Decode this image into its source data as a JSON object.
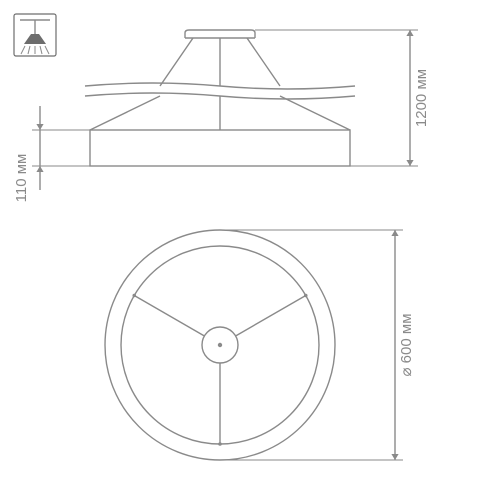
{
  "drawing": {
    "type": "engineering-diagram",
    "background_color": "#ffffff",
    "stroke_color": "#8a8a8a",
    "stroke_width": 1.4,
    "text_color": "#8a8a8a",
    "font_size_pt": 11,
    "dimensions_unit": "мм"
  },
  "dimensions": {
    "height_label": "1200 мм",
    "body_height_label": "110 мм",
    "diameter_label": "⌀ 600 мм"
  },
  "elevation": {
    "ceiling_mount_w": 70,
    "ceiling_mount_h": 8,
    "suspension_drop": 48,
    "wave_amplitude": 6,
    "body_outer_w": 260,
    "body_outer_h": 36,
    "cone_top_w": 120,
    "cone_bottom_w": 260
  },
  "plan": {
    "outer_r": 115,
    "ring_inner_r": 99,
    "hub_r": 18,
    "spoke_count": 3,
    "spoke_angles_deg": [
      90,
      210,
      330
    ]
  },
  "icon": {
    "box_size": 42,
    "stroke": "#6d6d6d"
  }
}
